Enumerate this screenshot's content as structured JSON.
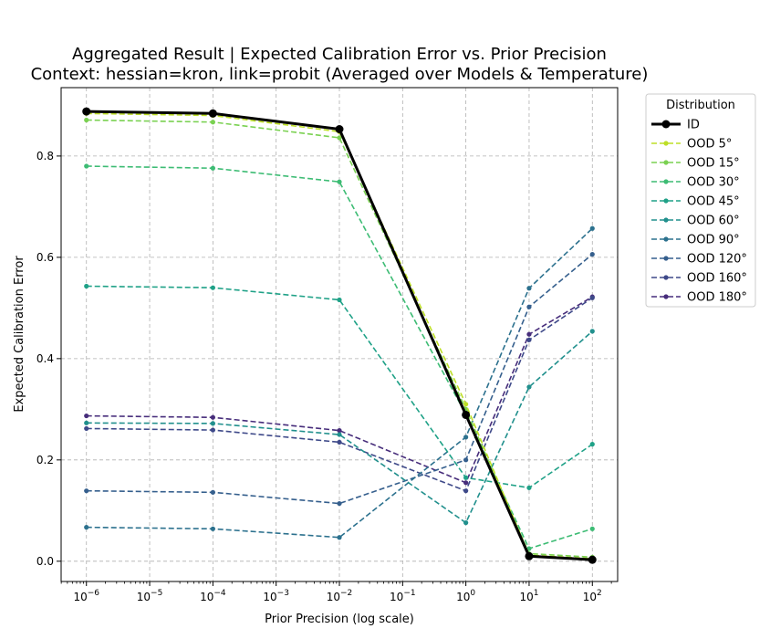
{
  "chart_data": {
    "type": "line",
    "title": "Aggregated Result | Expected Calibration Error vs. Prior Precision",
    "subtitle": "Context: hessian=kron, link=probit (Averaged over Models & Temperature)",
    "xlabel": "Prior Precision (log scale)",
    "ylabel": "Expected Calibration Error",
    "xscale": "log",
    "xlim_exp": [
      -6.4,
      2.4
    ],
    "ylim": [
      -0.04,
      0.935
    ],
    "xticks": [
      {
        "exp": -6,
        "label": "−6"
      },
      {
        "exp": -5,
        "label": "−5"
      },
      {
        "exp": -4,
        "label": "−4"
      },
      {
        "exp": -3,
        "label": "−3"
      },
      {
        "exp": -2,
        "label": "−2"
      },
      {
        "exp": -1,
        "label": "−1"
      },
      {
        "exp": 0,
        "label": "0"
      },
      {
        "exp": 1,
        "label": "1"
      },
      {
        "exp": 2,
        "label": "2"
      }
    ],
    "xtick_base": "10",
    "yticks": [
      {
        "value": 0.0,
        "label": "0.0"
      },
      {
        "value": 0.2,
        "label": "0.2"
      },
      {
        "value": 0.4,
        "label": "0.4"
      },
      {
        "value": 0.6,
        "label": "0.6"
      },
      {
        "value": 0.8,
        "label": "0.8"
      }
    ],
    "grid": true,
    "legend": {
      "title": "Distribution",
      "placement": "outside-right"
    },
    "x": [
      -6,
      -4,
      -2,
      0,
      1,
      2
    ],
    "series": [
      {
        "name": "ID",
        "color": "#000000",
        "style": "solid",
        "values": [
          0.888,
          0.884,
          0.853,
          0.289,
          0.01,
          0.003
        ]
      },
      {
        "name": "OOD 5°",
        "color": "#bddf26",
        "style": "dashed",
        "values": [
          0.884,
          0.88,
          0.848,
          0.31,
          0.012,
          0.005
        ]
      },
      {
        "name": "OOD 15°",
        "color": "#7ad151",
        "style": "dashed",
        "values": [
          0.871,
          0.867,
          0.836,
          0.3,
          0.015,
          0.008
        ]
      },
      {
        "name": "OOD 30°",
        "color": "#3dbc74",
        "style": "dashed",
        "values": [
          0.78,
          0.776,
          0.749,
          0.29,
          0.025,
          0.064
        ]
      },
      {
        "name": "OOD 45°",
        "color": "#1fa187",
        "style": "dashed",
        "values": [
          0.543,
          0.54,
          0.516,
          0.165,
          0.145,
          0.231
        ]
      },
      {
        "name": "OOD 60°",
        "color": "#21908d",
        "style": "dashed",
        "values": [
          0.273,
          0.272,
          0.25,
          0.076,
          0.344,
          0.454
        ]
      },
      {
        "name": "OOD 90°",
        "color": "#2c718e",
        "style": "dashed",
        "values": [
          0.067,
          0.064,
          0.047,
          0.245,
          0.539,
          0.657
        ]
      },
      {
        "name": "OOD 120°",
        "color": "#355f8d",
        "style": "dashed",
        "values": [
          0.139,
          0.136,
          0.114,
          0.2,
          0.502,
          0.606
        ]
      },
      {
        "name": "OOD 160°",
        "color": "#3e4989",
        "style": "dashed",
        "values": [
          0.262,
          0.259,
          0.235,
          0.139,
          0.437,
          0.52
        ]
      },
      {
        "name": "OOD 180°",
        "color": "#472d7b",
        "style": "dashed",
        "values": [
          0.287,
          0.284,
          0.258,
          0.155,
          0.448,
          0.522
        ]
      }
    ]
  }
}
